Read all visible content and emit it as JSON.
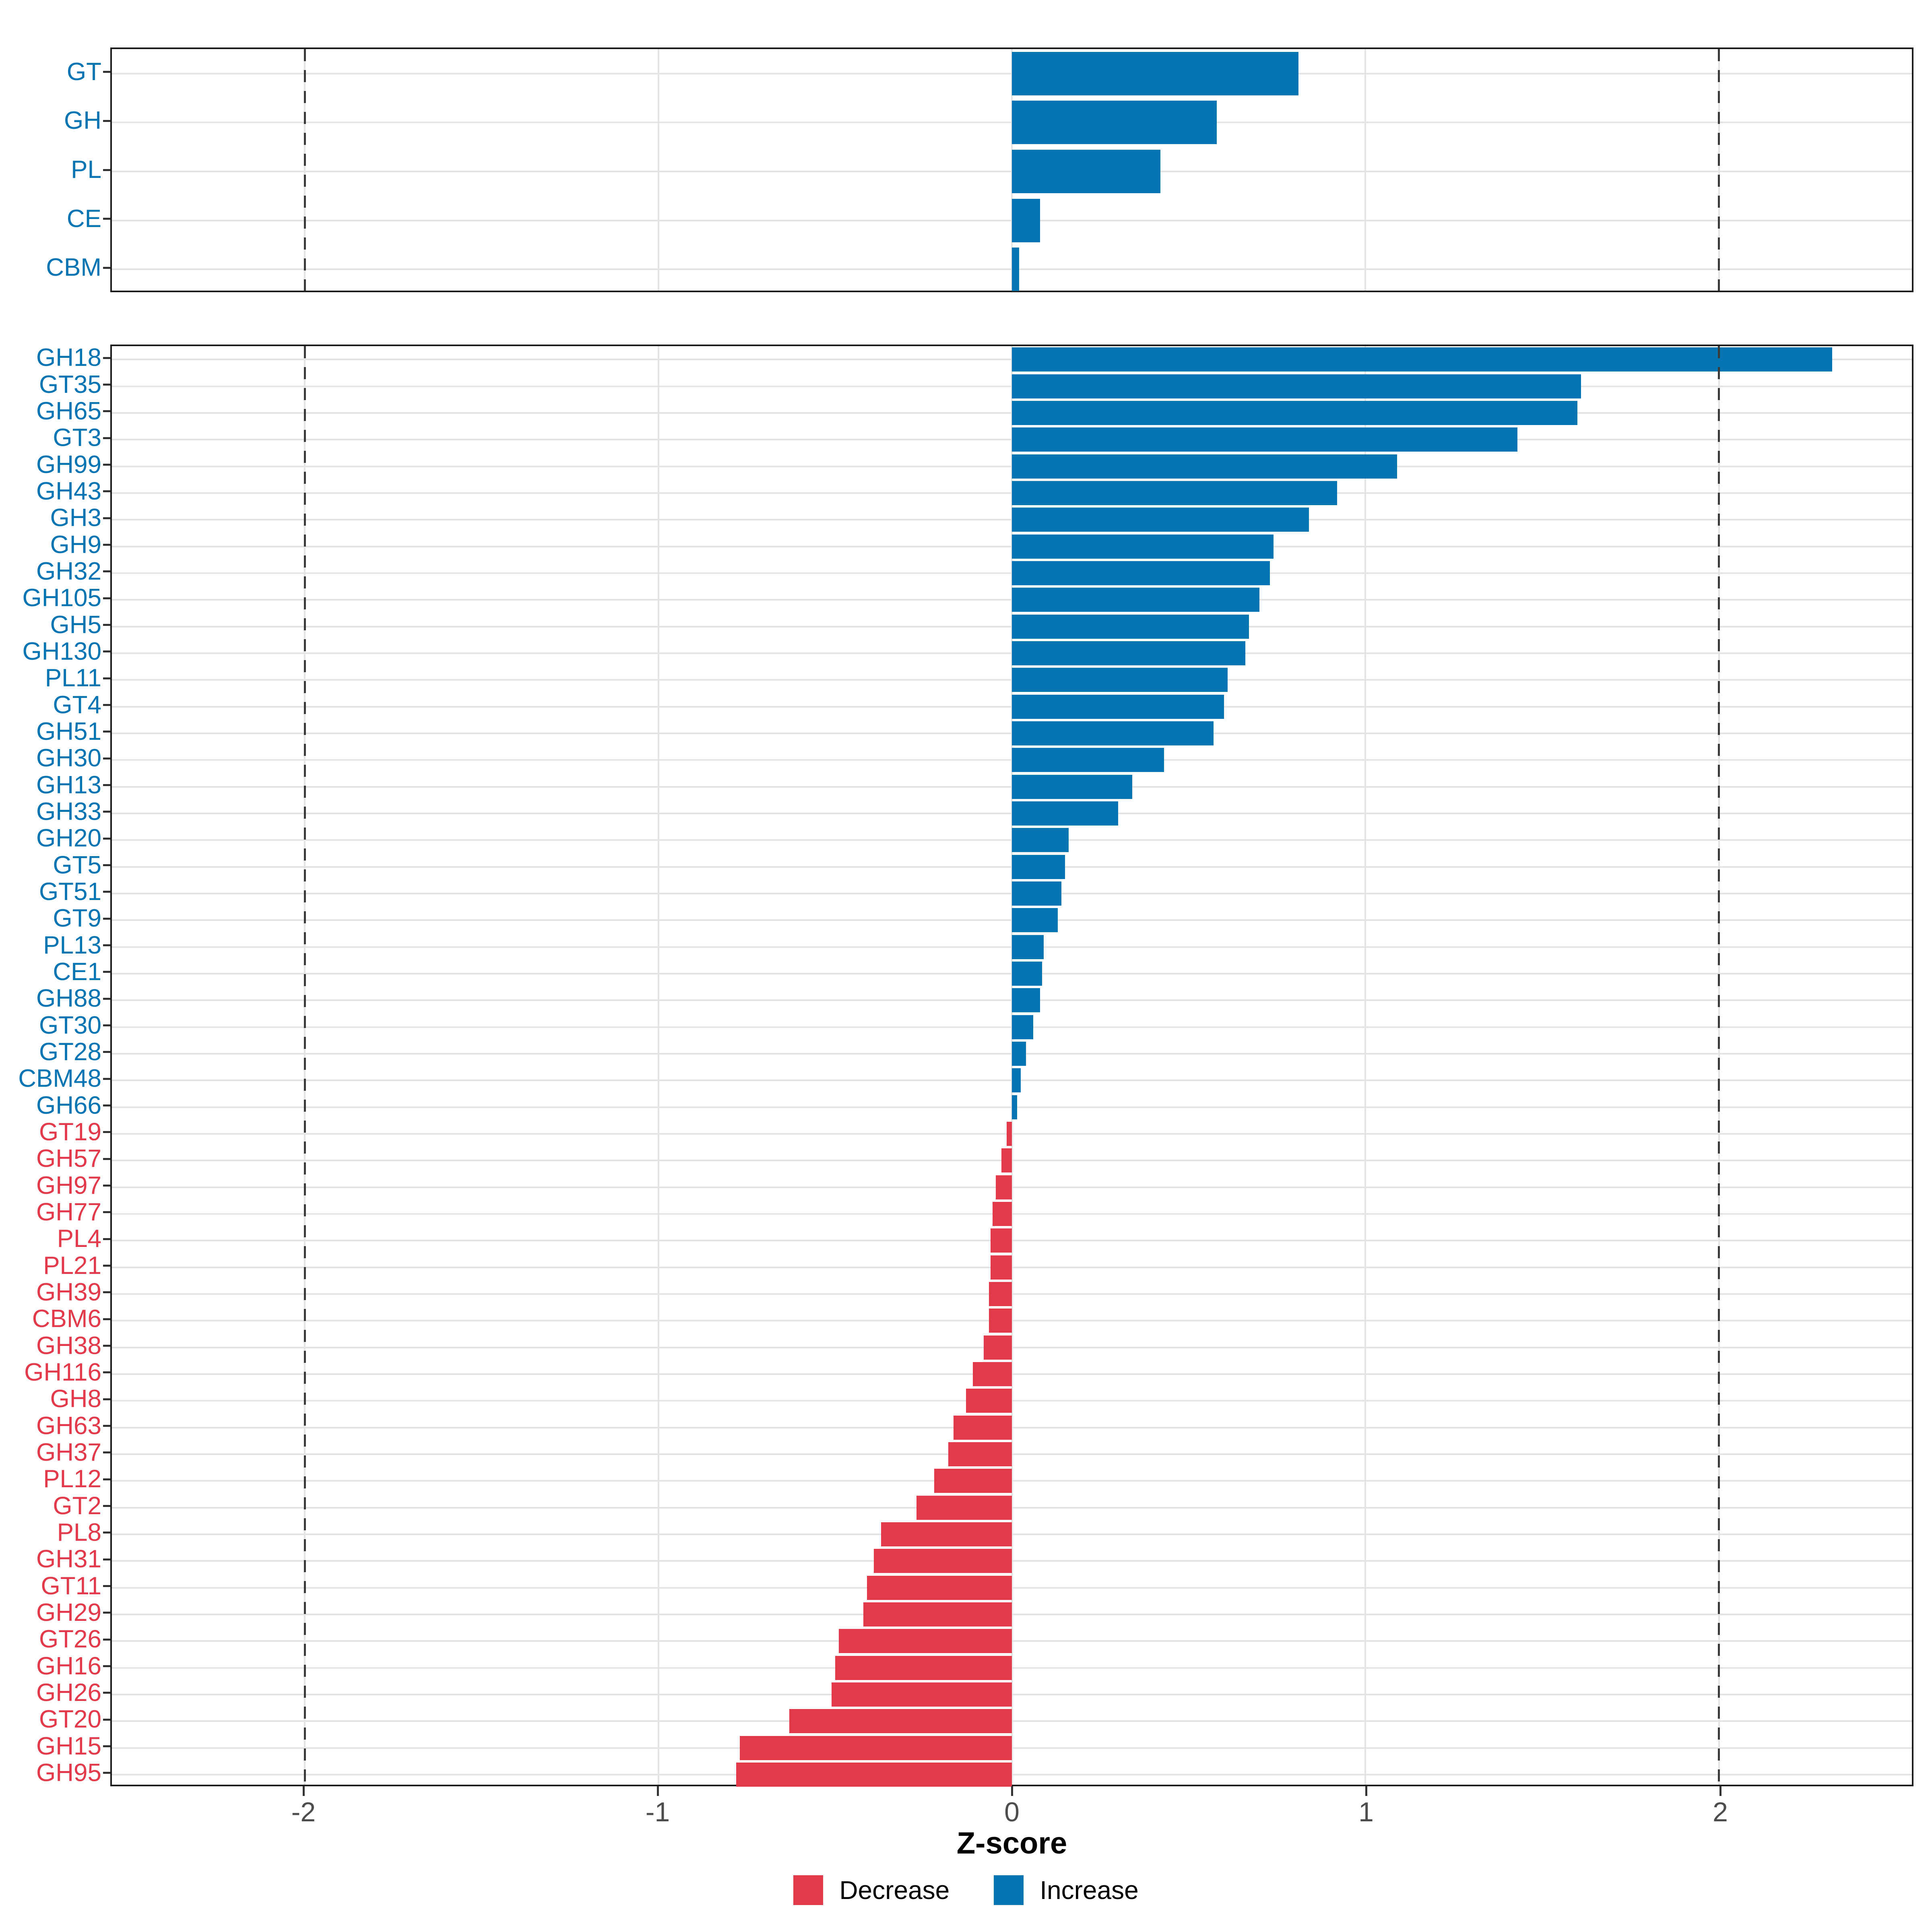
{
  "axis": {
    "xlabel": "Z-score",
    "ticks": [
      "-2",
      "-1",
      "0",
      "1",
      "2"
    ],
    "tick_values": [
      -2,
      -1,
      0,
      1,
      2
    ]
  },
  "legend": [
    {
      "label": "Decrease",
      "color": "#E2394B"
    },
    {
      "label": "Increase",
      "color": "#0574B2"
    }
  ],
  "colors": {
    "increase": "#0574B2",
    "decrease": "#E2394B",
    "gridline": "#e4e4e4",
    "panel_border": "#1c1c1c",
    "reference_line": "#3a3a3a",
    "tick_label": "#4d4d4d"
  },
  "chart_data": [
    {
      "type": "bar",
      "orientation": "horizontal",
      "panel": "class-level",
      "title": "",
      "xlabel": "Z-score",
      "xlim": [
        -2.545,
        2.545
      ],
      "grid": "on",
      "reference_lines": [
        -2,
        2
      ],
      "categories": [
        "GT",
        "GH",
        "PL",
        "CE",
        "CBM"
      ],
      "values": [
        0.81,
        0.58,
        0.42,
        0.08,
        0.02
      ]
    },
    {
      "type": "bar",
      "orientation": "horizontal",
      "panel": "family-level",
      "title": "",
      "xlabel": "Z-score",
      "xlim": [
        -2.545,
        2.545
      ],
      "grid": "on",
      "reference_lines": [
        -2,
        2
      ],
      "categories": [
        "GH18",
        "GT35",
        "GH65",
        "GT3",
        "GH99",
        "GH43",
        "GH3",
        "GH9",
        "GH32",
        "GH105",
        "GH5",
        "GH130",
        "PL11",
        "GT4",
        "GH51",
        "GH30",
        "GH13",
        "GH33",
        "GH20",
        "GT5",
        "GT51",
        "GT9",
        "PL13",
        "CE1",
        "GH88",
        "GT30",
        "GT28",
        "CBM48",
        "GH66",
        "GT19",
        "GH57",
        "GH97",
        "GH77",
        "PL4",
        "PL21",
        "GH39",
        "CBM6",
        "GH38",
        "GH116",
        "GH8",
        "GH63",
        "GH37",
        "PL12",
        "GT2",
        "PL8",
        "GH31",
        "GT11",
        "GH29",
        "GT26",
        "GH16",
        "GH26",
        "GT20",
        "GH15",
        "GH95"
      ],
      "values": [
        2.32,
        1.61,
        1.6,
        1.43,
        1.09,
        0.92,
        0.84,
        0.74,
        0.73,
        0.7,
        0.67,
        0.66,
        0.61,
        0.6,
        0.57,
        0.43,
        0.34,
        0.3,
        0.16,
        0.15,
        0.14,
        0.13,
        0.09,
        0.085,
        0.08,
        0.06,
        0.04,
        0.025,
        0.015,
        -0.015,
        -0.03,
        -0.045,
        -0.055,
        -0.06,
        -0.06,
        -0.065,
        -0.065,
        -0.08,
        -0.11,
        -0.13,
        -0.165,
        -0.18,
        -0.22,
        -0.27,
        -0.37,
        -0.39,
        -0.41,
        -0.42,
        -0.49,
        -0.5,
        -0.51,
        -0.63,
        -0.77,
        -0.78
      ]
    }
  ]
}
